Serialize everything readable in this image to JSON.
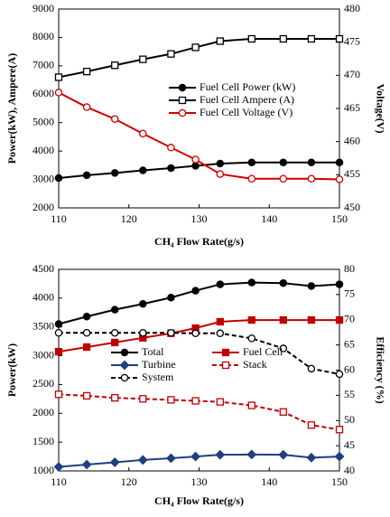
{
  "chart_data": [
    {
      "type": "line",
      "x_label": "CH₄ Flow Rate(g/s)",
      "y_label": "Power(kW), Ampere(A)",
      "y2_label": "Voltage(V)",
      "x": [
        110,
        114,
        118,
        122,
        126,
        129.5,
        133,
        137.5,
        142,
        146,
        150
      ],
      "xlim": [
        110,
        150
      ],
      "xticks": [
        110,
        120,
        130,
        140,
        150
      ],
      "ylim": [
        2000,
        9000
      ],
      "yticks": [
        2000,
        3000,
        4000,
        5000,
        6000,
        7000,
        8000,
        9000
      ],
      "y2lim": [
        450,
        480
      ],
      "y2ticks": [
        450,
        455,
        460,
        465,
        470,
        475,
        480
      ],
      "legend": "center-right",
      "grid": false,
      "series": [
        {
          "name": "Fuel Cell Power (kW)",
          "color": "#000000",
          "marker": "circle",
          "filled": true,
          "dashed": false,
          "values": [
            3050,
            3150,
            3230,
            3320,
            3400,
            3480,
            3560,
            3600,
            3600,
            3600,
            3600
          ]
        },
        {
          "name": "Fuel Cell Ampere (A)",
          "color": "#000000",
          "marker": "square",
          "filled": false,
          "dashed": false,
          "values": [
            6600,
            6800,
            7020,
            7230,
            7420,
            7650,
            7870,
            7950,
            7950,
            7950,
            7950
          ]
        },
        {
          "name": "Fuel Cell Voltage (V)",
          "color": "#cc0000",
          "marker": "circle",
          "filled": false,
          "dashed": false,
          "axis": "y2",
          "values": [
            467.4,
            465.2,
            463.4,
            461.2,
            459.1,
            457.3,
            455.1,
            454.4,
            454.4,
            454.4,
            454.3
          ]
        }
      ]
    },
    {
      "type": "line",
      "x_label": "CH₄ Flow Rate(g/s)",
      "y_label": "Power(kW)",
      "y2_label": "Efficiency (%)",
      "x": [
        110,
        114,
        118,
        122,
        126,
        129.5,
        133,
        137.5,
        142,
        146,
        150
      ],
      "xlim": [
        110,
        150
      ],
      "xticks": [
        110,
        120,
        130,
        140,
        150
      ],
      "ylim": [
        1000,
        4500
      ],
      "yticks": [
        1000,
        1500,
        2000,
        2500,
        3000,
        3500,
        4000,
        4500
      ],
      "y2lim": [
        40,
        80
      ],
      "y2ticks": [
        40,
        45,
        50,
        55,
        60,
        65,
        70,
        75,
        80
      ],
      "legend": "center",
      "grid": false,
      "series": [
        {
          "name": "Total",
          "color": "#000000",
          "marker": "circle",
          "filled": true,
          "dashed": false,
          "values": [
            3550,
            3680,
            3800,
            3900,
            4010,
            4130,
            4240,
            4270,
            4260,
            4210,
            4240
          ]
        },
        {
          "name": "Fuel Cell",
          "color": "#c00000",
          "marker": "square",
          "filled": true,
          "dashed": false,
          "values": [
            3070,
            3150,
            3230,
            3310,
            3390,
            3480,
            3590,
            3620,
            3620,
            3620,
            3620
          ]
        },
        {
          "name": "Turbine",
          "color": "#1f3f7f",
          "marker": "diamond",
          "filled": true,
          "dashed": false,
          "values": [
            1070,
            1110,
            1150,
            1190,
            1220,
            1250,
            1280,
            1285,
            1280,
            1230,
            1250
          ]
        },
        {
          "name": "Stack",
          "color": "#c00000",
          "marker": "square",
          "filled": false,
          "dashed": true,
          "axis": "y2",
          "values": [
            55.2,
            54.9,
            54.5,
            54.3,
            54.1,
            53.9,
            53.7,
            53.0,
            51.7,
            49.1,
            48.2
          ]
        },
        {
          "name": "System",
          "color": "#000000",
          "marker": "circle",
          "filled": false,
          "dashed": true,
          "axis": "y2",
          "values": [
            67.4,
            67.4,
            67.4,
            67.4,
            67.4,
            67.3,
            67.3,
            66.3,
            64.3,
            60.3,
            59.2
          ]
        }
      ]
    }
  ]
}
